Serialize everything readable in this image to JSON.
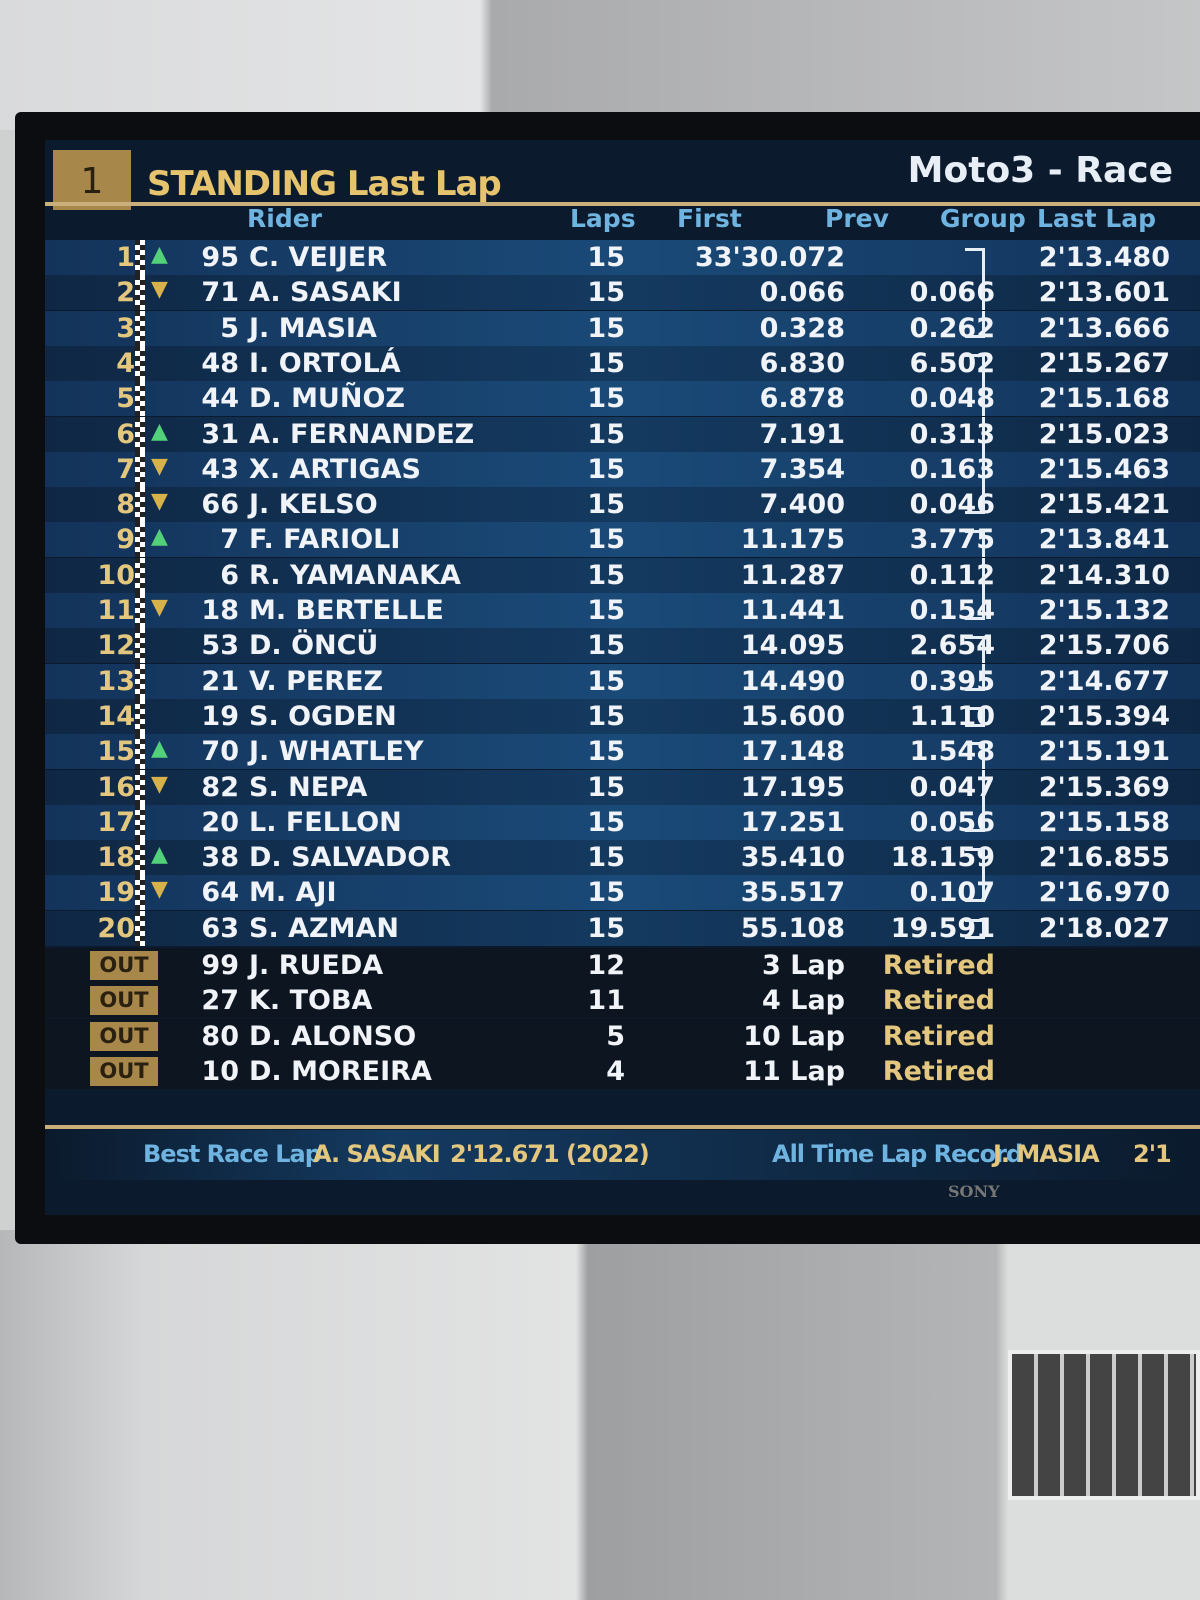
{
  "header": {
    "page_number": "1",
    "title": "STANDING Last Lap",
    "event": "Moto3 - Race"
  },
  "columns": {
    "rider": "Rider",
    "laps": "Laps",
    "first": "First",
    "prev": "Prev",
    "group": "Group",
    "last_lap": "Last Lap"
  },
  "rows": [
    {
      "pos": "1",
      "trend": "up",
      "num": "95",
      "name": "C. VEIJER",
      "laps": "15",
      "first": "33'30.072",
      "prev": "",
      "last": "2'13.480",
      "group": 1
    },
    {
      "pos": "2",
      "trend": "down",
      "num": "71",
      "name": "A. SASAKI",
      "laps": "15",
      "first": "0.066",
      "prev": "0.066",
      "last": "2'13.601",
      "group": 1
    },
    {
      "pos": "3",
      "trend": "",
      "num": "5",
      "name": "J. MASIA",
      "laps": "15",
      "first": "0.328",
      "prev": "0.262",
      "last": "2'13.666",
      "group": 1
    },
    {
      "pos": "4",
      "trend": "",
      "num": "48",
      "name": "I. ORTOLÁ",
      "laps": "15",
      "first": "6.830",
      "prev": "6.502",
      "last": "2'15.267",
      "group": 2
    },
    {
      "pos": "5",
      "trend": "",
      "num": "44",
      "name": "D. MUÑOZ",
      "laps": "15",
      "first": "6.878",
      "prev": "0.048",
      "last": "2'15.168",
      "group": 2
    },
    {
      "pos": "6",
      "trend": "up",
      "num": "31",
      "name": "A. FERNANDEZ",
      "laps": "15",
      "first": "7.191",
      "prev": "0.313",
      "last": "2'15.023",
      "group": 2
    },
    {
      "pos": "7",
      "trend": "down",
      "num": "43",
      "name": "X. ARTIGAS",
      "laps": "15",
      "first": "7.354",
      "prev": "0.163",
      "last": "2'15.463",
      "group": 2
    },
    {
      "pos": "8",
      "trend": "down",
      "num": "66",
      "name": "J. KELSO",
      "laps": "15",
      "first": "7.400",
      "prev": "0.046",
      "last": "2'15.421",
      "group": 2
    },
    {
      "pos": "9",
      "trend": "up",
      "num": "7",
      "name": "F. FARIOLI",
      "laps": "15",
      "first": "11.175",
      "prev": "3.775",
      "last": "2'13.841",
      "group": 3
    },
    {
      "pos": "10",
      "trend": "",
      "num": "6",
      "name": "R. YAMANAKA",
      "laps": "15",
      "first": "11.287",
      "prev": "0.112",
      "last": "2'14.310",
      "group": 3
    },
    {
      "pos": "11",
      "trend": "down",
      "num": "18",
      "name": "M. BERTELLE",
      "laps": "15",
      "first": "11.441",
      "prev": "0.154",
      "last": "2'15.132",
      "group": 3
    },
    {
      "pos": "12",
      "trend": "",
      "num": "53",
      "name": "D. ÖNCÜ",
      "laps": "15",
      "first": "14.095",
      "prev": "2.654",
      "last": "2'15.706",
      "group": 4
    },
    {
      "pos": "13",
      "trend": "",
      "num": "21",
      "name": "V. PEREZ",
      "laps": "15",
      "first": "14.490",
      "prev": "0.395",
      "last": "2'14.677",
      "group": 4
    },
    {
      "pos": "14",
      "trend": "",
      "num": "19",
      "name": "S. OGDEN",
      "laps": "15",
      "first": "15.600",
      "prev": "1.110",
      "last": "2'15.394",
      "group": 5
    },
    {
      "pos": "15",
      "trend": "up",
      "num": "70",
      "name": "J. WHATLEY",
      "laps": "15",
      "first": "17.148",
      "prev": "1.548",
      "last": "2'15.191",
      "group": 6
    },
    {
      "pos": "16",
      "trend": "down",
      "num": "82",
      "name": "S. NEPA",
      "laps": "15",
      "first": "17.195",
      "prev": "0.047",
      "last": "2'15.369",
      "group": 6
    },
    {
      "pos": "17",
      "trend": "",
      "num": "20",
      "name": "L. FELLON",
      "laps": "15",
      "first": "17.251",
      "prev": "0.056",
      "last": "2'15.158",
      "group": 6
    },
    {
      "pos": "18",
      "trend": "up",
      "num": "38",
      "name": "D. SALVADOR",
      "laps": "15",
      "first": "35.410",
      "prev": "18.159",
      "last": "2'16.855",
      "group": 7
    },
    {
      "pos": "19",
      "trend": "down",
      "num": "64",
      "name": "M. AJI",
      "laps": "15",
      "first": "35.517",
      "prev": "0.107",
      "last": "2'16.970",
      "group": 7
    },
    {
      "pos": "20",
      "trend": "",
      "num": "63",
      "name": "S. AZMAN",
      "laps": "15",
      "first": "55.108",
      "prev": "19.591",
      "last": "2'18.027",
      "group": 8
    }
  ],
  "out_rows": [
    {
      "badge": "OUT",
      "num": "99",
      "name": "J. RUEDA",
      "laps": "12",
      "first": "3 Lap",
      "prev": "Retired"
    },
    {
      "badge": "OUT",
      "num": "27",
      "name": "K. TOBA",
      "laps": "11",
      "first": "4 Lap",
      "prev": "Retired"
    },
    {
      "badge": "OUT",
      "num": "80",
      "name": "D. ALONSO",
      "laps": "5",
      "first": "10 Lap",
      "prev": "Retired"
    },
    {
      "badge": "OUT",
      "num": "10",
      "name": "D. MOREIRA",
      "laps": "4",
      "first": "11 Lap",
      "prev": "Retired"
    }
  ],
  "footer": {
    "best_label": "Best Race Lap",
    "best_rider": "A. SASAKI",
    "best_time": "2'12.671 (2022)",
    "record_label": "All Time Lap Record",
    "record_rider": "J. MASIA",
    "record_time": "2'1"
  },
  "tv_brand": "SONY",
  "colors": {
    "gold": "#e4c77e",
    "header_blue": "#6fb4e0",
    "up": "#52d07a",
    "down": "#d7b24a"
  }
}
